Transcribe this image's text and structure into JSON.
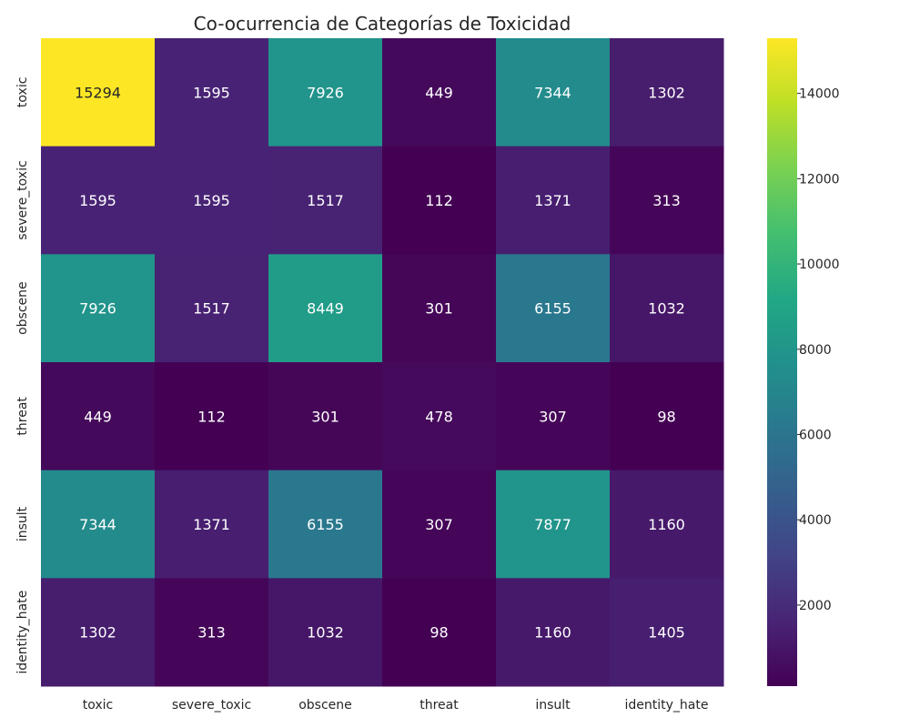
{
  "chart_data": {
    "type": "heatmap",
    "title": "Co-ocurrencia de Categorías de Toxicidad",
    "xlabel": "",
    "ylabel": "",
    "x_categories": [
      "toxic",
      "severe_toxic",
      "obscene",
      "threat",
      "insult",
      "identity_hate"
    ],
    "y_categories": [
      "toxic",
      "severe_toxic",
      "obscene",
      "threat",
      "insult",
      "identity_hate"
    ],
    "values": [
      [
        15294,
        1595,
        7926,
        449,
        7344,
        1302
      ],
      [
        1595,
        1595,
        1517,
        112,
        1371,
        313
      ],
      [
        7926,
        1517,
        8449,
        301,
        6155,
        1032
      ],
      [
        449,
        112,
        301,
        478,
        307,
        98
      ],
      [
        7344,
        1371,
        6155,
        307,
        7877,
        1160
      ],
      [
        1302,
        313,
        1032,
        98,
        1160,
        1405
      ]
    ],
    "colormap": "viridis",
    "colorbar": {
      "range": [
        98,
        15294
      ],
      "ticks": [
        2000,
        4000,
        6000,
        8000,
        10000,
        12000,
        14000
      ]
    },
    "annotations": true,
    "grid": false
  }
}
